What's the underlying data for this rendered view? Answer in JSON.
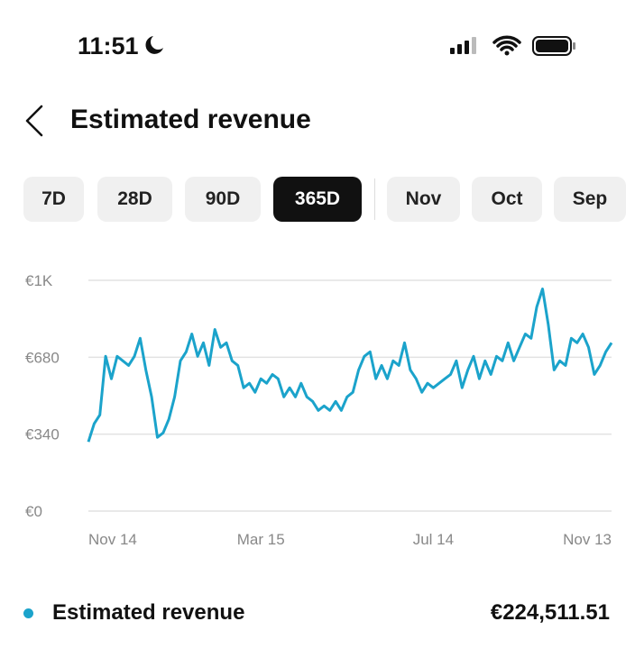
{
  "status_bar": {
    "time": "11:51"
  },
  "header": {
    "title": "Estimated revenue"
  },
  "tabs": {
    "items": [
      "7D",
      "28D",
      "90D",
      "365D",
      "Nov",
      "Oct",
      "Sep"
    ],
    "selected": 3
  },
  "chart_data": {
    "type": "line",
    "categories": [
      "Nov 14",
      null,
      null,
      null,
      null,
      null,
      null,
      null,
      null,
      null,
      null,
      null,
      null,
      null,
      null,
      null,
      null,
      null,
      null,
      null,
      null,
      null,
      null,
      null,
      null,
      null,
      null,
      null,
      null,
      null,
      "Mar 15",
      null,
      null,
      null,
      null,
      null,
      null,
      null,
      null,
      null,
      null,
      null,
      null,
      null,
      null,
      null,
      null,
      null,
      null,
      null,
      null,
      null,
      null,
      null,
      null,
      null,
      null,
      null,
      null,
      null,
      "Jul 14",
      null,
      null,
      null,
      null,
      null,
      null,
      null,
      null,
      null,
      null,
      null,
      null,
      null,
      null,
      null,
      null,
      null,
      null,
      null,
      null,
      null,
      null,
      null,
      null,
      null,
      null,
      null,
      null,
      null,
      null,
      "Nov 13"
    ],
    "series": [
      {
        "color": "#1ba3cb",
        "values": [
          306,
          386,
          425,
          684,
          585,
          684,
          664,
          644,
          684,
          764,
          624,
          505,
          326,
          346,
          406,
          505,
          664,
          704,
          783,
          684,
          744,
          644,
          803,
          724,
          744,
          664,
          644,
          545,
          565,
          525,
          585,
          565,
          604,
          585,
          505,
          545,
          505,
          565,
          505,
          485,
          445,
          465,
          445,
          485,
          445,
          505,
          525,
          624,
          684,
          704,
          585,
          644,
          585,
          664,
          644,
          744,
          624,
          585,
          525,
          565,
          545,
          565,
          585,
          604,
          664,
          545,
          624,
          684,
          585,
          664,
          604,
          684,
          664,
          744,
          664,
          724,
          783,
          764,
          903,
          982,
          823,
          624,
          664,
          644,
          764,
          744,
          783,
          724,
          604,
          644,
          704,
          744
        ]
      }
    ],
    "ylim": [
      0,
      1020
    ],
    "yticks": [
      {
        "value": 0,
        "label": "€0"
      },
      {
        "value": 340,
        "label": "€340"
      },
      {
        "value": 680,
        "label": "€680"
      },
      {
        "value": 1020,
        "label": "€1K"
      }
    ],
    "grid": true
  },
  "summary": {
    "label": "Estimated revenue",
    "value": "€224,511.51"
  }
}
